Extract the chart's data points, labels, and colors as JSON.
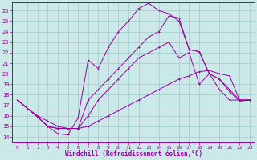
{
  "xlabel": "Windchill (Refroidissement éolien,°C)",
  "bg_color": "#cce8e8",
  "grid_color": "#99cccc",
  "line_color": "#990099",
  "xlim": [
    -0.5,
    23.5
  ],
  "ylim": [
    13.5,
    26.8
  ],
  "xticks": [
    0,
    1,
    2,
    3,
    4,
    5,
    6,
    7,
    8,
    9,
    10,
    11,
    12,
    13,
    14,
    15,
    16,
    17,
    18,
    19,
    20,
    21,
    22,
    23
  ],
  "yticks": [
    14,
    15,
    16,
    17,
    18,
    19,
    20,
    21,
    22,
    23,
    24,
    25,
    26
  ],
  "line1_x": [
    0,
    1,
    2,
    3,
    4,
    5,
    6,
    7,
    8,
    9,
    10,
    11,
    12,
    13,
    14,
    15,
    16,
    17,
    18,
    19,
    20,
    21,
    22,
    23
  ],
  "line1_y": [
    17.5,
    16.7,
    16.0,
    15.5,
    15.0,
    14.8,
    14.8,
    15.0,
    15.5,
    16.0,
    16.5,
    17.0,
    17.5,
    18.0,
    18.5,
    19.0,
    19.5,
    19.8,
    20.2,
    20.3,
    20.0,
    19.8,
    17.5,
    17.5
  ],
  "line2_x": [
    0,
    1,
    2,
    3,
    4,
    5,
    6,
    7,
    8,
    9,
    10,
    11,
    12,
    13,
    14,
    15,
    16,
    17,
    18,
    19,
    20,
    21,
    22,
    23
  ],
  "line2_y": [
    17.5,
    16.7,
    15.9,
    15.0,
    14.8,
    14.8,
    14.8,
    16.0,
    17.5,
    18.5,
    19.5,
    20.5,
    21.5,
    22.0,
    22.5,
    23.0,
    21.5,
    22.0,
    19.0,
    20.0,
    19.5,
    18.5,
    17.5,
    17.5
  ],
  "line3_x": [
    0,
    1,
    2,
    3,
    4,
    5,
    6,
    7,
    8,
    9,
    10,
    11,
    12,
    13,
    14,
    15,
    16,
    17,
    18,
    19,
    20,
    21,
    22,
    23
  ],
  "line3_y": [
    17.5,
    16.7,
    15.9,
    15.0,
    14.8,
    14.8,
    14.8,
    17.5,
    18.5,
    19.5,
    20.5,
    21.5,
    22.5,
    23.5,
    24.0,
    25.5,
    25.3,
    22.3,
    22.1,
    20.0,
    18.5,
    17.5,
    17.5,
    17.5
  ],
  "line4_x": [
    0,
    1,
    2,
    3,
    4,
    5,
    6,
    7,
    8,
    9,
    10,
    11,
    12,
    13,
    14,
    15,
    16,
    17,
    18,
    19,
    20,
    21,
    22,
    23
  ],
  "line4_y": [
    17.5,
    16.7,
    15.9,
    15.0,
    14.3,
    14.2,
    15.8,
    21.3,
    20.5,
    22.5,
    24.0,
    25.0,
    26.2,
    26.7,
    26.0,
    25.7,
    25.0,
    22.3,
    22.1,
    20.0,
    19.5,
    18.3,
    17.4,
    17.5
  ]
}
